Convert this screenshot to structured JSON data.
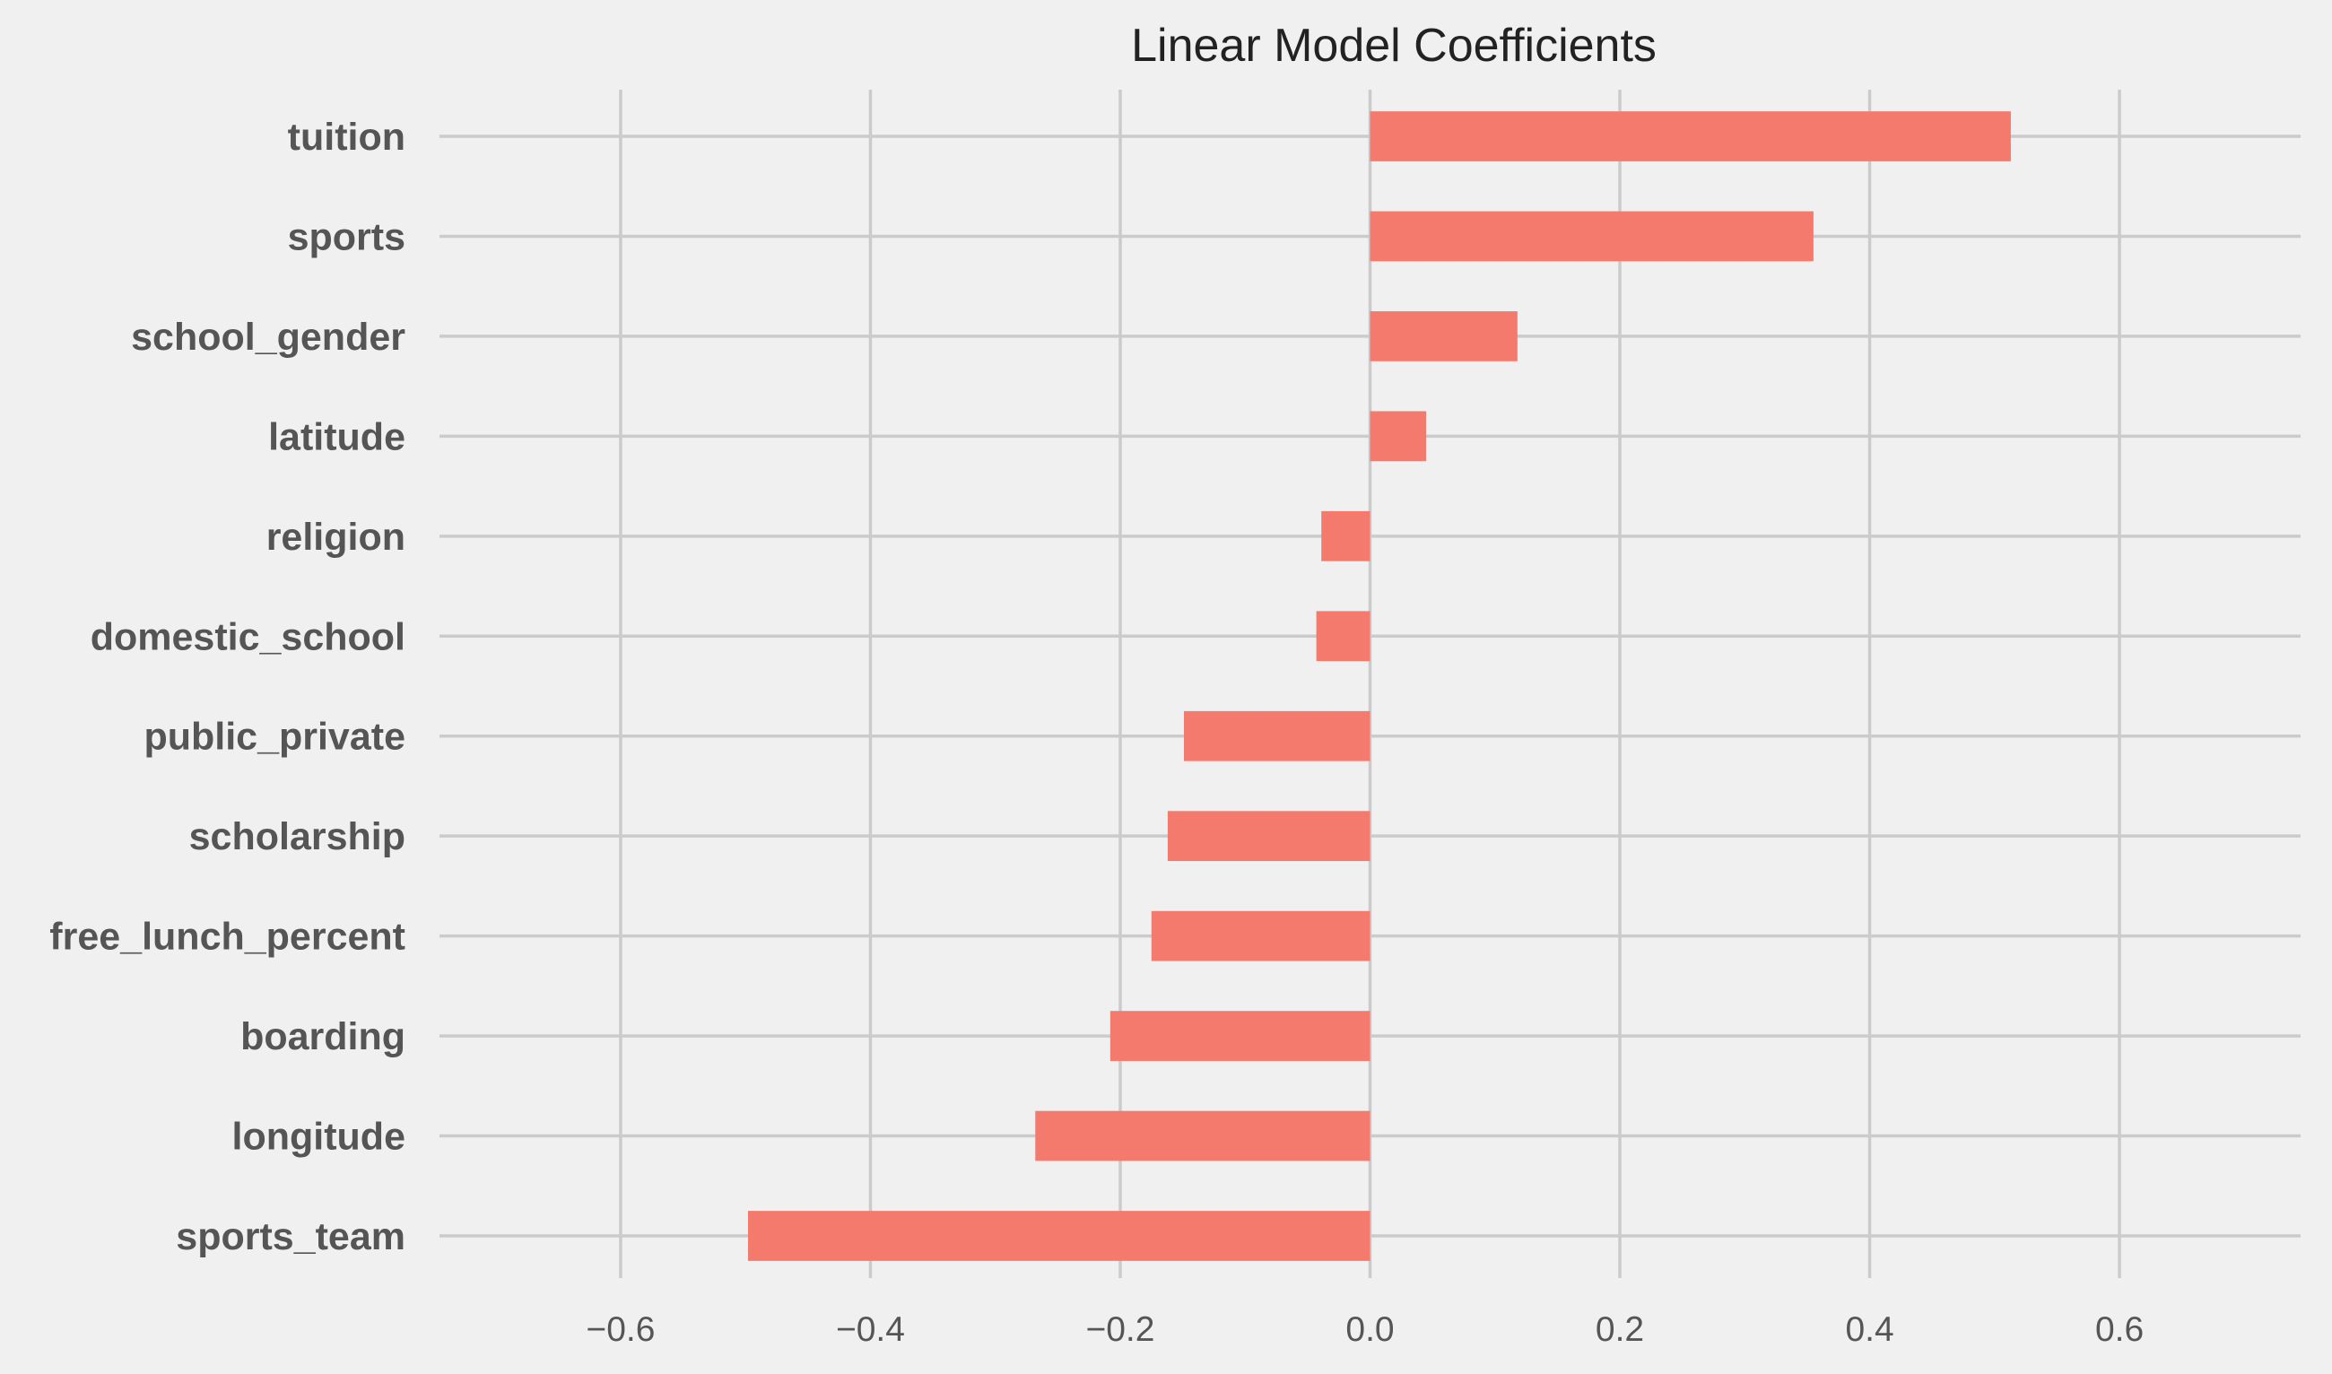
{
  "chart_data": {
    "type": "bar",
    "orientation": "horizontal",
    "title": "Linear Model Coefficients",
    "xlabel": "",
    "ylabel": "",
    "xlim": [
      -0.745,
      0.745
    ],
    "grid": true,
    "bar_color": "#f47a6d",
    "background_color": "#f0f0f0",
    "grid_color": "#cbcbcb",
    "categories": [
      "tuition",
      "sports",
      "school_gender",
      "latitude",
      "religion",
      "domestic_school",
      "public_private",
      "scholarship",
      "free_lunch_percent",
      "boarding",
      "longitude",
      "sports_team"
    ],
    "values": [
      0.513,
      0.355,
      0.118,
      0.045,
      -0.039,
      -0.043,
      -0.149,
      -0.162,
      -0.175,
      -0.208,
      -0.268,
      -0.498
    ],
    "x_ticks": [
      -0.6,
      -0.4,
      -0.2,
      0.0,
      0.2,
      0.4,
      0.6
    ],
    "x_tick_labels": [
      "−0.6",
      "−0.4",
      "−0.2",
      "0.0",
      "0.2",
      "0.4",
      "0.6"
    ]
  }
}
